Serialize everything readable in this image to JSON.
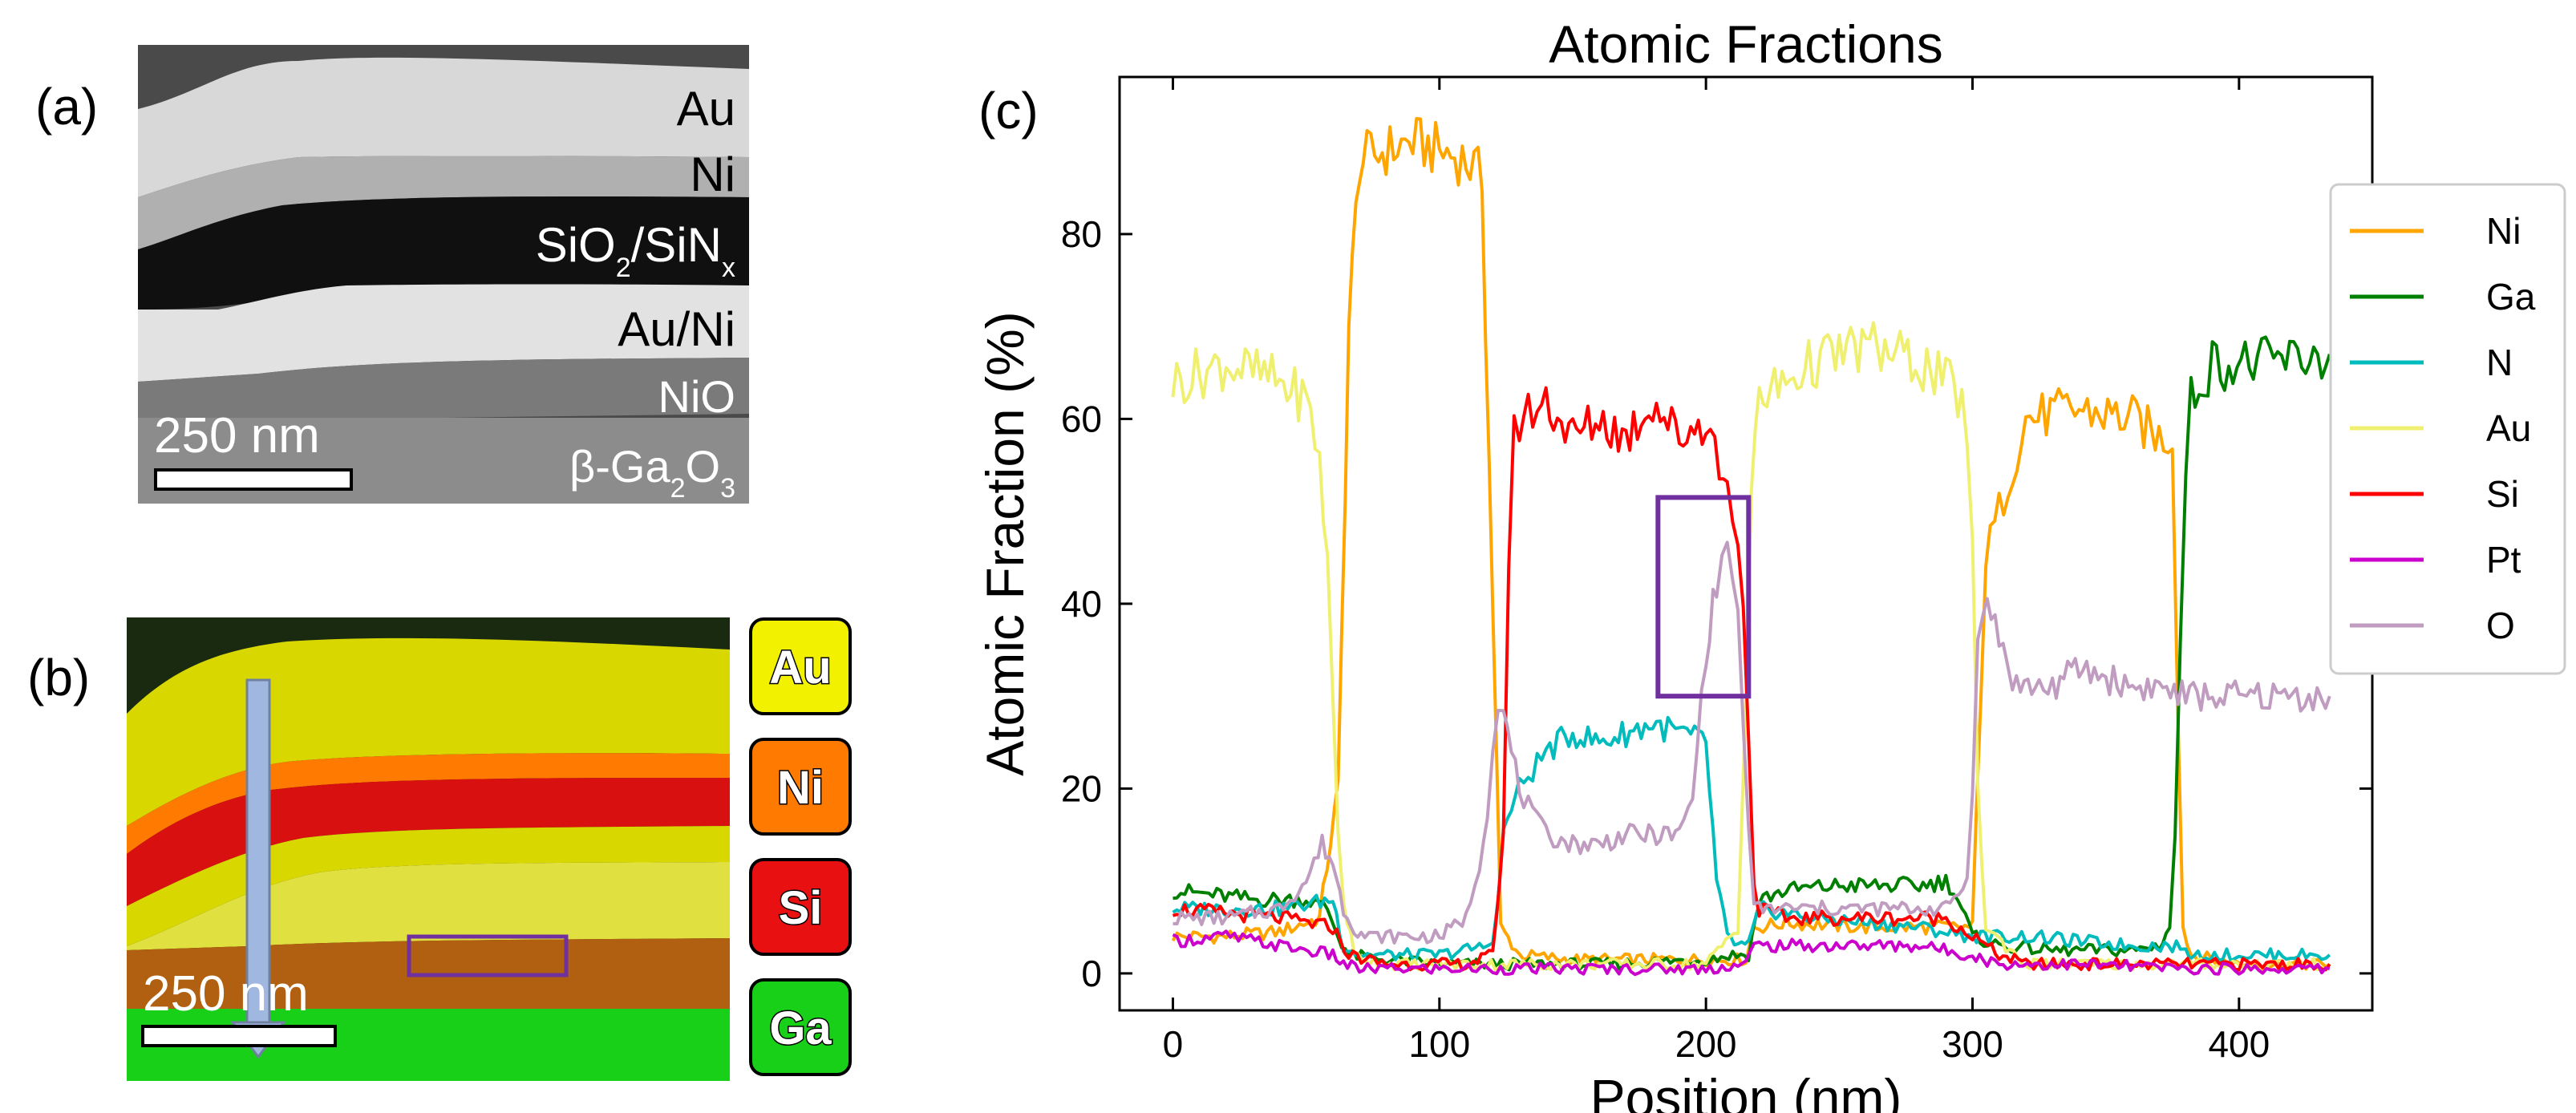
{
  "panel_labels": {
    "a": "(a)",
    "b": "(b)",
    "c": "(c)"
  },
  "panel_a": {
    "layers": [
      {
        "html": "Au"
      },
      {
        "html": "Ni"
      },
      {
        "html": "SiO<tspan baseline-shift='sub' font-size='34'>2</tspan>/SiN<tspan baseline-shift='sub' font-size='34'>x</tspan>"
      },
      {
        "html": "Au/Ni"
      },
      {
        "html": "NiO"
      },
      {
        "html": "β-Ga<tspan baseline-shift='sub' font-size='34'>2</tspan>O<tspan baseline-shift='sub' font-size='34'>3</tspan>"
      }
    ],
    "layer_text": [
      "Au",
      "Ni",
      "SiO2/SiNx",
      "Au/Ni",
      "NiO",
      "β-Ga2O3"
    ],
    "scale_bar": "250 nm"
  },
  "panel_b": {
    "scale_bar": "250 nm",
    "elements": [
      {
        "label": "Au",
        "color": "#f2f200"
      },
      {
        "label": "Ni",
        "color": "#ff7a00"
      },
      {
        "label": "Si",
        "color": "#e81010"
      },
      {
        "label": "Ga",
        "color": "#18d018"
      }
    ]
  },
  "chart_data": {
    "type": "line",
    "title": "Atomic Fractions",
    "xlabel": "Position (nm)",
    "ylabel": "Atomic Fraction (%)",
    "xlim": [
      -20,
      450
    ],
    "ylim": [
      -4,
      97
    ],
    "xticks": [
      0,
      100,
      200,
      300,
      400
    ],
    "yticks": [
      0,
      20,
      40,
      60,
      80
    ],
    "grid": false,
    "legend_position": "outside-right",
    "highlight_box": {
      "x": [
        182,
        216
      ],
      "y": [
        30,
        51.5
      ],
      "color": "#7030a0"
    },
    "series": [
      {
        "name": "Ni",
        "color": "#ffa500",
        "x": [
          0,
          20,
          40,
          55,
          62,
          66,
          70,
          80,
          90,
          100,
          110,
          116,
          120,
          123,
          130,
          150,
          200,
          210,
          215,
          218,
          220,
          230,
          260,
          290,
          300,
          303,
          305,
          310,
          315,
          320,
          340,
          360,
          370,
          375,
          377,
          379,
          382,
          400,
          434
        ],
        "y": [
          4,
          4,
          4.5,
          6,
          20,
          70,
          88,
          89,
          90,
          89,
          88,
          86,
          40,
          5,
          2,
          1.5,
          1.5,
          1.5,
          1.5,
          5,
          5,
          5.5,
          5,
          5,
          5,
          30,
          45,
          50,
          55,
          60,
          61,
          60,
          58,
          58,
          30,
          5,
          2,
          1,
          1
        ]
      },
      {
        "name": "Ga",
        "color": "#008000",
        "x": [
          0,
          30,
          50,
          58,
          62,
          66,
          80,
          100,
          120,
          140,
          160,
          200,
          210,
          216,
          220,
          230,
          250,
          280,
          290,
          293,
          296,
          300,
          310,
          330,
          360,
          370,
          374,
          376,
          378,
          380,
          382,
          385,
          390,
          410,
          434
        ],
        "y": [
          9,
          8,
          8,
          7,
          4,
          2,
          1.5,
          1,
          1,
          1,
          1,
          1.5,
          2,
          2,
          8,
          9,
          9.5,
          9.5,
          10,
          9,
          7,
          4,
          3,
          2.5,
          2.5,
          3,
          5,
          15,
          35,
          55,
          62,
          64,
          66,
          66,
          67
        ]
      },
      {
        "name": "N",
        "color": "#00bcbc",
        "x": [
          0,
          40,
          60,
          64,
          70,
          100,
          118,
          120,
          122,
          124,
          127,
          130,
          135,
          140,
          150,
          160,
          170,
          180,
          190,
          200,
          204,
          208,
          212,
          216,
          220,
          240,
          280,
          300,
          320,
          360,
          378,
          380,
          400,
          434
        ],
        "y": [
          7,
          7,
          8,
          3,
          2,
          2,
          3,
          4,
          8,
          15,
          18,
          20,
          22,
          24,
          26,
          25,
          26,
          27,
          26,
          25,
          10,
          4,
          3,
          3,
          7,
          6,
          5,
          4,
          4,
          3,
          3,
          2,
          2,
          2
        ]
      },
      {
        "name": "Au",
        "color": "#f0f070",
        "x": [
          0,
          10,
          20,
          30,
          40,
          50,
          55,
          58,
          60,
          62,
          64,
          68,
          80,
          100,
          200,
          212,
          215,
          217,
          220,
          230,
          240,
          250,
          260,
          270,
          280,
          290,
          296,
          298,
          300,
          302,
          305,
          320,
          360,
          434
        ],
        "y": [
          64,
          65,
          66,
          65,
          64,
          62,
          56,
          44,
          30,
          15,
          8,
          2,
          1,
          1,
          1,
          5,
          30,
          52,
          62,
          64,
          66,
          67,
          68,
          67,
          66,
          64,
          62,
          58,
          45,
          20,
          5,
          1,
          1,
          1
        ]
      },
      {
        "name": "Si",
        "color": "#ff0000",
        "x": [
          0,
          40,
          60,
          66,
          80,
          110,
          120,
          124,
          126,
          128,
          130,
          135,
          140,
          150,
          160,
          170,
          180,
          190,
          200,
          205,
          208,
          210,
          212,
          214,
          216,
          218,
          220,
          230,
          260,
          290,
          300,
          310,
          320,
          360,
          400,
          434
        ],
        "y": [
          7,
          6,
          5,
          2,
          1,
          1,
          2,
          15,
          45,
          58,
          60,
          61,
          62,
          58,
          60,
          58,
          62,
          58,
          60,
          55,
          52,
          50,
          48,
          40,
          25,
          10,
          7,
          6,
          6,
          6,
          4,
          2,
          1,
          1,
          1,
          1
        ]
      },
      {
        "name": "Pt",
        "color": "#cc00cc",
        "x": [
          0,
          20,
          40,
          60,
          64,
          70,
          100,
          120,
          160,
          200,
          215,
          218,
          220,
          240,
          280,
          300,
          304,
          310,
          340,
          380,
          400,
          434
        ],
        "y": [
          3.5,
          4,
          3,
          2,
          1,
          0.5,
          0.5,
          0.5,
          0.5,
          0.5,
          1,
          3,
          3,
          3,
          3,
          2,
          1.5,
          1,
          1,
          0.5,
          0.5,
          0.5
        ]
      },
      {
        "name": "O",
        "color": "#c09cc0",
        "x": [
          0,
          20,
          40,
          50,
          56,
          60,
          64,
          68,
          72,
          80,
          100,
          110,
          115,
          118,
          120,
          122,
          124,
          127,
          130,
          135,
          140,
          150,
          160,
          170,
          180,
          190,
          195,
          200,
          204,
          206,
          208,
          210,
          212,
          214,
          216,
          218,
          220,
          230,
          260,
          290,
          298,
          300,
          302,
          304,
          307,
          310,
          313,
          315,
          318,
          325,
          330,
          340,
          350,
          360,
          370,
          380,
          390,
          400,
          410,
          420,
          434
        ],
        "y": [
          6,
          6,
          7,
          10,
          14,
          12,
          7,
          5,
          4,
          4,
          4,
          6,
          12,
          18,
          24,
          30,
          28,
          24,
          20,
          17,
          15,
          14,
          14,
          15,
          15,
          15,
          19,
          35,
          42,
          45,
          46,
          43,
          38,
          28,
          15,
          7,
          7,
          7,
          7,
          7,
          10,
          20,
          38,
          40,
          39,
          36,
          34,
          32,
          31,
          31,
          31,
          33,
          32,
          31,
          31,
          30,
          30,
          30,
          30,
          30,
          30
        ]
      }
    ]
  }
}
